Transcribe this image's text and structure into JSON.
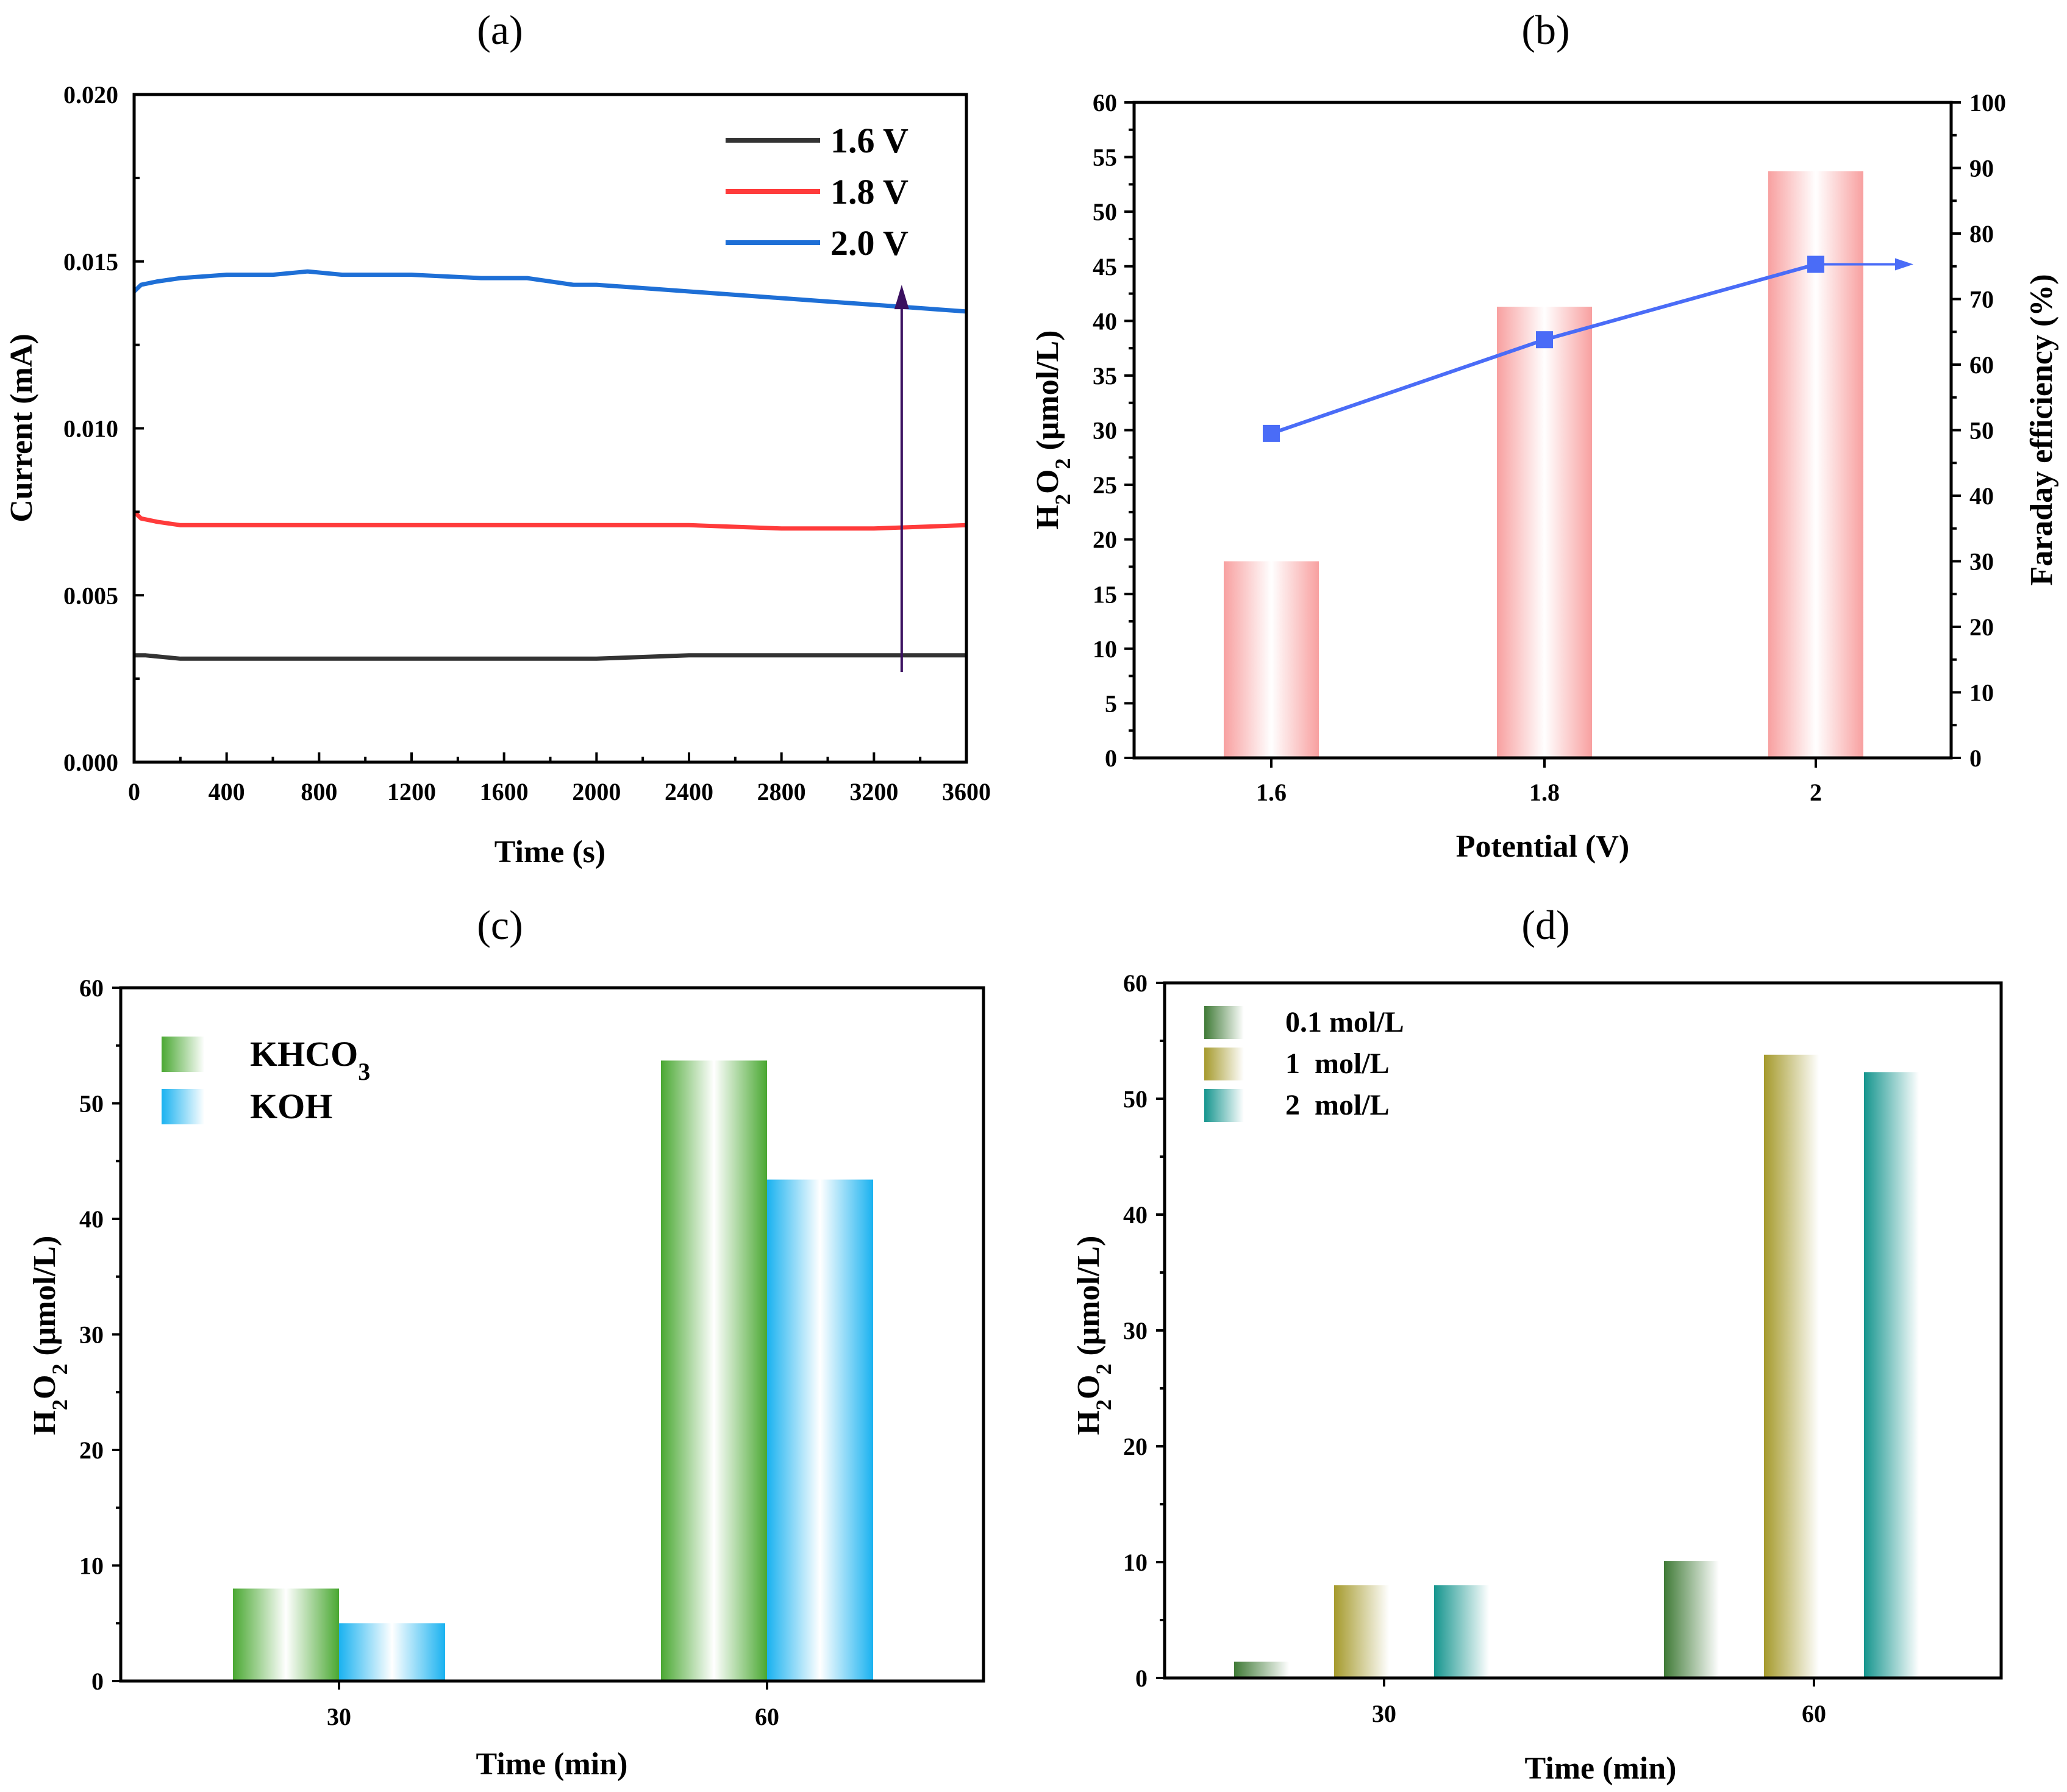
{
  "figure": {
    "panel_labels": {
      "a": "(a)",
      "b": "(b)",
      "c": "(c)",
      "d": "(d)"
    }
  },
  "chart_data": [
    {
      "id": "a",
      "type": "line",
      "xlabel": "Time (s)",
      "ylabel": "Current (mA)",
      "xlim": [
        0,
        3600
      ],
      "ylim": [
        0.0,
        0.02
      ],
      "xticks": [
        0,
        400,
        800,
        1200,
        1600,
        2000,
        2400,
        2800,
        3200,
        3600
      ],
      "xtick_labels": [
        "0",
        "400",
        "800",
        "1200",
        "1600",
        "2000",
        "2400",
        "2800",
        "3200",
        "3600"
      ],
      "yticks": [
        0.0,
        0.005,
        0.01,
        0.015,
        0.02
      ],
      "ytick_labels": [
        "0.000",
        "0.005",
        "0.010",
        "0.015",
        "0.020"
      ],
      "legend_position": "top-right",
      "series": [
        {
          "name": "1.6 V",
          "color": "#333333",
          "x": [
            0,
            50,
            200,
            400,
            800,
            1200,
            1600,
            2000,
            2400,
            2800,
            3200,
            3600
          ],
          "y": [
            0.0032,
            0.0032,
            0.0031,
            0.0031,
            0.0031,
            0.0031,
            0.0031,
            0.0031,
            0.0032,
            0.0032,
            0.0032,
            0.0032
          ]
        },
        {
          "name": "1.8 V",
          "color": "#ff3b3b",
          "x": [
            0,
            30,
            100,
            200,
            400,
            800,
            1200,
            1600,
            2000,
            2400,
            2800,
            3200,
            3600
          ],
          "y": [
            0.0075,
            0.0073,
            0.0072,
            0.0071,
            0.0071,
            0.0071,
            0.0071,
            0.0071,
            0.0071,
            0.0071,
            0.007,
            0.007,
            0.0071
          ]
        },
        {
          "name": "2.0 V",
          "color": "#1e6fd6",
          "x": [
            0,
            30,
            100,
            200,
            400,
            600,
            750,
            900,
            1200,
            1500,
            1700,
            1900,
            2000,
            2200,
            2400,
            2600,
            2800,
            3000,
            3200,
            3400,
            3600
          ],
          "y": [
            0.0141,
            0.0143,
            0.0144,
            0.0145,
            0.0146,
            0.0146,
            0.0147,
            0.0146,
            0.0146,
            0.0145,
            0.0145,
            0.0143,
            0.0143,
            0.0142,
            0.0141,
            0.014,
            0.0139,
            0.0138,
            0.0137,
            0.0136,
            0.0135
          ]
        }
      ],
      "annotation": {
        "type": "arrow",
        "x": 3320,
        "y_from": 0.0027,
        "y_to": 0.0143,
        "color": "#3a1060",
        "meaning": "increasing potential"
      }
    },
    {
      "id": "b",
      "type": "bar+line",
      "xlabel": "Potential (V)",
      "ylabel": "H2O2 (μmol/L)",
      "ylabel_right": "Faraday efficiency (%)",
      "categories": [
        "1.6",
        "1.8",
        "2"
      ],
      "ylim": [
        0,
        60
      ],
      "yticks": [
        0,
        5,
        10,
        15,
        20,
        25,
        30,
        35,
        40,
        45,
        50,
        55,
        60
      ],
      "ylim_right": [
        0,
        100
      ],
      "yticks_right": [
        0,
        10,
        20,
        30,
        40,
        50,
        60,
        70,
        80,
        90,
        100
      ],
      "bars": {
        "name": "H2O2",
        "color": "#f8a0a0",
        "values": [
          18,
          41.3,
          53.7
        ]
      },
      "line": {
        "name": "Faraday efficiency",
        "color": "#4a6cf7",
        "values": [
          49.5,
          63.8,
          75.3
        ],
        "axis": "right"
      }
    },
    {
      "id": "c",
      "type": "bar",
      "xlabel": "Time (min)",
      "ylabel": "H2O2 (μmol/L)",
      "categories": [
        "30",
        "60"
      ],
      "ylim": [
        0,
        60
      ],
      "yticks": [
        0,
        10,
        20,
        30,
        40,
        50,
        60
      ],
      "legend_position": "top-left",
      "series": [
        {
          "name": "KHCO3",
          "label_main": "KHCO",
          "label_sub": "3",
          "color": "#4aa832",
          "values": [
            8.0,
            53.7
          ]
        },
        {
          "name": "KOH",
          "label_main": "KOH",
          "label_sub": "",
          "color": "#1ab2f0",
          "values": [
            5.0,
            43.4
          ]
        }
      ]
    },
    {
      "id": "d",
      "type": "bar",
      "xlabel": "Time (min)",
      "ylabel": "H2O2 (μmol/L)",
      "categories": [
        "30",
        "60"
      ],
      "ylim": [
        0,
        60
      ],
      "yticks": [
        0,
        10,
        20,
        30,
        40,
        50,
        60
      ],
      "legend_position": "top-left",
      "series": [
        {
          "name": "0.1 mol/L",
          "color": "#3f7a36",
          "values": [
            1.4,
            10.1
          ]
        },
        {
          "name": "1  mol/L",
          "color": "#a59a2c",
          "values": [
            8.0,
            53.8
          ]
        },
        {
          "name": "2  mol/L",
          "color": "#15958e",
          "values": [
            8.0,
            52.3
          ]
        }
      ]
    }
  ]
}
